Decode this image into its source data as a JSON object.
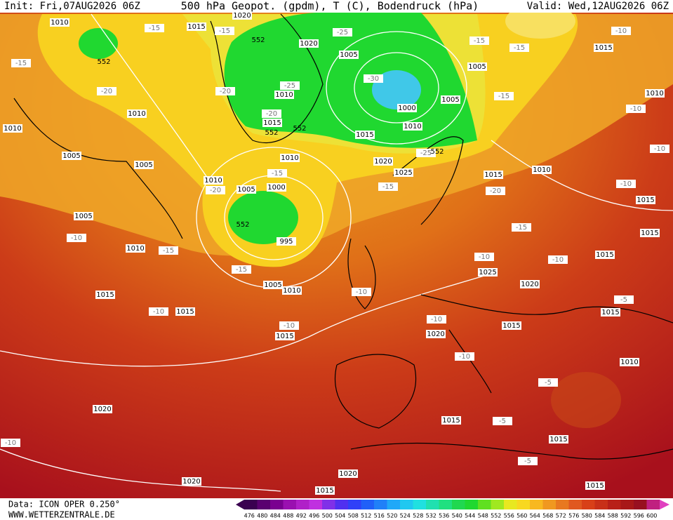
{
  "header": {
    "init": "Init: Fri,07AUG2026 06Z",
    "title": "500 hPa Geopot. (gpdm), T (C), Bodendruck (hPa)",
    "valid": "Valid: Wed,12AUG2026 06Z"
  },
  "map": {
    "isobar_labels": [
      1010,
      1015,
      1020,
      1020,
      1005,
      1005,
      1015,
      1010,
      1010,
      1010,
      1000,
      1005,
      1015,
      1010,
      1015,
      1010,
      1005,
      1005,
      1010,
      1020,
      1025,
      1010,
      1015,
      1010,
      1005,
      1000,
      1015,
      1005,
      995,
      1010,
      1015,
      1015,
      1025,
      1020,
      1005,
      1010,
      1015,
      1015,
      1015,
      1015,
      1020,
      1015,
      1010,
      1020,
      1015,
      1015,
      1020,
      1020,
      1015,
      1015
    ],
    "temperature_labels": [
      -15,
      -15,
      -25,
      -15,
      -10,
      -15,
      -15,
      -20,
      -20,
      -30,
      -25,
      -15,
      -10,
      -20,
      -25,
      -10,
      -15,
      -15,
      -20,
      -10,
      -20,
      -15,
      -10,
      -15,
      -10,
      -10,
      -15,
      -10,
      -10,
      -10,
      -10,
      -10,
      -5,
      -10,
      -5,
      -5,
      -5
    ],
    "geopotential_labels": [
      552,
      552,
      552,
      552,
      552,
      552
    ]
  },
  "footer": {
    "source": "Data: ICON OPER 0.250°",
    "site": "WWW.WETTERZENTRALE.DE"
  },
  "colorbar": {
    "ticks": [
      476,
      480,
      484,
      488,
      492,
      496,
      500,
      504,
      508,
      512,
      516,
      520,
      524,
      528,
      532,
      536,
      540,
      544,
      548,
      552,
      556,
      560,
      564,
      568,
      572,
      576,
      580,
      584,
      588,
      592,
      596,
      600
    ]
  }
}
